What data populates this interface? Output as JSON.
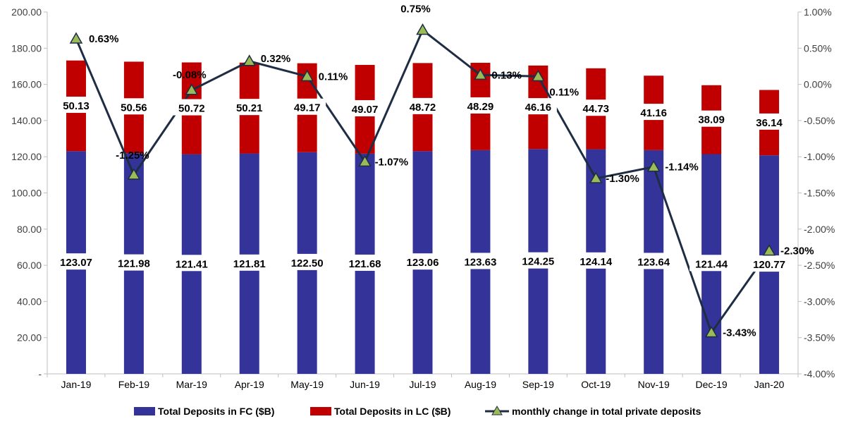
{
  "chart_data": {
    "type": "bar",
    "stacked": true,
    "categories": [
      "Jan-19",
      "Feb-19",
      "Mar-19",
      "Apr-19",
      "May-19",
      "Jun-19",
      "Jul-19",
      "Aug-19",
      "Sep-19",
      "Oct-19",
      "Nov-19",
      "Dec-19",
      "Jan-20"
    ],
    "series": [
      {
        "name": "Total Deposits in FC ($B)",
        "type": "bar",
        "axis": "left",
        "color": "#333399",
        "values": [
          123.07,
          121.98,
          121.41,
          121.81,
          122.5,
          121.68,
          123.06,
          123.63,
          124.25,
          124.14,
          123.64,
          121.44,
          120.77
        ]
      },
      {
        "name": "Total Deposits in LC ($B)",
        "type": "bar",
        "axis": "left",
        "color": "#C00000",
        "values": [
          50.13,
          50.56,
          50.72,
          50.21,
          49.17,
          49.07,
          48.72,
          48.29,
          46.16,
          44.73,
          41.16,
          38.09,
          36.14
        ]
      },
      {
        "name": "monthly change in total private deposits",
        "type": "line",
        "axis": "right",
        "color": "#1F2D44",
        "marker_color": "#9BBB59",
        "values": [
          0.63,
          -1.25,
          -0.08,
          0.32,
          0.11,
          -1.07,
          0.75,
          0.13,
          0.11,
          -1.3,
          -1.14,
          -3.43,
          -2.3
        ],
        "labels": [
          "0.63%",
          "-1.25%",
          "-0.08%",
          "0.32%",
          "0.11%",
          "-1.07%",
          "0.75%",
          "0.13%",
          "0.11%",
          "-1.30%",
          "-1.14%",
          "-3.43%",
          "-2.30%"
        ]
      }
    ],
    "left_axis": {
      "ylim": [
        0,
        200
      ],
      "ticks": [
        "-",
        "20.00",
        "40.00",
        "60.00",
        "80.00",
        "100.00",
        "120.00",
        "140.00",
        "160.00",
        "180.00",
        "200.00"
      ]
    },
    "right_axis": {
      "ylim": [
        -4,
        1
      ],
      "unit": "%",
      "ticks": [
        "-4.00%",
        "-3.50%",
        "-3.00%",
        "-2.50%",
        "-2.00%",
        "-1.50%",
        "-1.00%",
        "-0.50%",
        "0.00%",
        "0.50%",
        "1.00%"
      ]
    },
    "grid": false,
    "legend": "bottom"
  }
}
